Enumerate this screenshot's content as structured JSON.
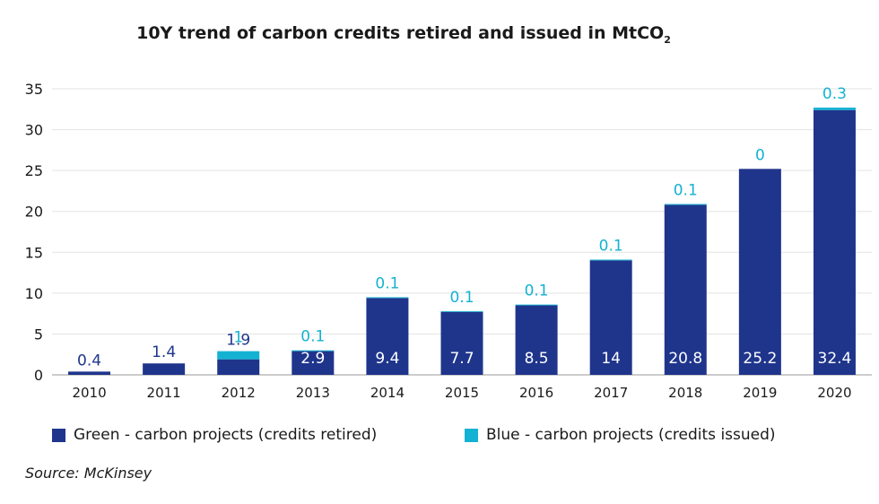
{
  "chart_data": {
    "type": "bar",
    "stacked": true,
    "title_main": "10Y trend of carbon credits retired and issued in MtCO",
    "title_sub": "2",
    "categories": [
      "2010",
      "2011",
      "2012",
      "2013",
      "2014",
      "2015",
      "2016",
      "2017",
      "2018",
      "2019",
      "2020"
    ],
    "series": [
      {
        "name": "Green - carbon projects (credits retired)",
        "color": "#1f358c",
        "values": [
          0.4,
          1.4,
          1.9,
          2.9,
          9.4,
          7.7,
          8.5,
          14,
          20.8,
          25.2,
          32.4
        ]
      },
      {
        "name": "Blue - carbon projects (credits issued)",
        "color": "#14b2d2",
        "values": [
          0,
          0,
          1,
          0.1,
          0.1,
          0.1,
          0.1,
          0.1,
          0.1,
          0,
          0.3
        ]
      }
    ],
    "green_labels": [
      "0.4",
      "1.4",
      "1.9",
      "2.9",
      "9.4",
      "7.7",
      "8.5",
      "14",
      "20.8",
      "25.2",
      "32.4"
    ],
    "blue_labels": [
      "",
      "",
      "1",
      "0.1",
      "0.1",
      "0.1",
      "0.1",
      "0.1",
      "0.1",
      "0",
      "0.3"
    ],
    "ylim": [
      0,
      35
    ],
    "yticks": [
      0,
      5,
      10,
      15,
      20,
      25,
      30,
      35
    ],
    "grid": true,
    "legend_position": "bottom"
  },
  "source": "Source: McKinsey"
}
